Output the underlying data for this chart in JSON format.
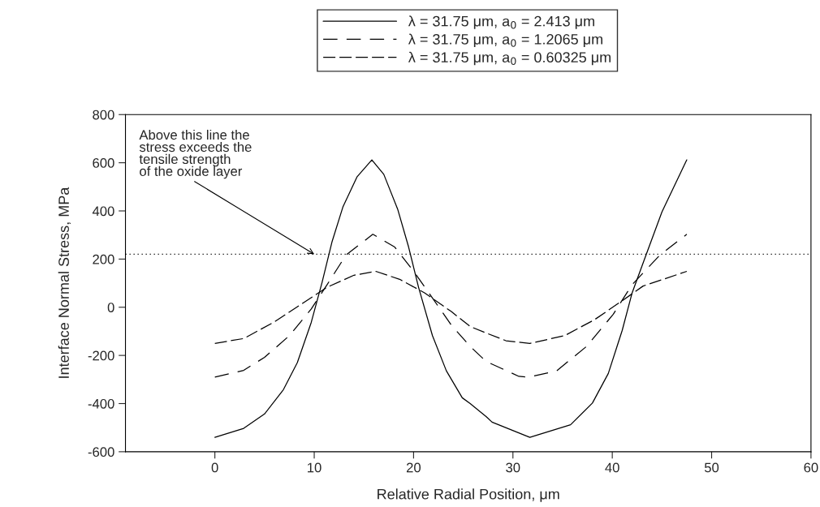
{
  "chart_data": {
    "type": "line",
    "xlabel": "Relative Radial Position, μm",
    "ylabel": "Interface Normal Stress, MPa",
    "xlim": [
      -9,
      60
    ],
    "xticks": [
      0,
      10,
      20,
      30,
      40,
      50,
      60
    ],
    "ylim": [
      -600,
      800
    ],
    "yticks": [
      -600,
      -400,
      -200,
      0,
      200,
      400,
      600,
      800
    ],
    "grid": false,
    "legend": "top",
    "marker": "none",
    "series": [
      {
        "name": "λ = 31.75 μm, a$_{0}$ = 2.413 μm",
        "color": "#000000",
        "line_style": "solid",
        "x": [
          0,
          2.9,
          5.0,
          6.9,
          8.3,
          9.7,
          10.8,
          11.8,
          12.9,
          14.3,
          15.8,
          17.0,
          18.4,
          19.5,
          20.5,
          21.9,
          23.3,
          24.9,
          25.7,
          27.3,
          27.9,
          31.7,
          35.8,
          38.0,
          39.6,
          41.0,
          42.0,
          43.4,
          45.0,
          47.5
        ],
        "values": [
          -540,
          -503,
          -443,
          -342,
          -230,
          -63,
          105,
          273,
          418,
          541,
          612,
          552,
          407,
          250,
          83,
          -118,
          -264,
          -376,
          -400,
          -454,
          -477,
          -540,
          -488,
          -398,
          -275,
          -96,
          60,
          217,
          396,
          612
        ]
      },
      {
        "name": "λ = 31.75 μm, a$_{0}$ = 1.2065 μm",
        "color": "#000000",
        "line_style": "dashed",
        "x": [
          0,
          2.9,
          5.0,
          7.5,
          9.7,
          11.3,
          13.2,
          15.9,
          18.1,
          20.0,
          21.9,
          23.8,
          25.7,
          27.3,
          30.6,
          31.6,
          34.4,
          37.4,
          40.1,
          42.0,
          44.8,
          47.5
        ],
        "values": [
          -290,
          -262,
          -208,
          -118,
          -7,
          94,
          217,
          303,
          250,
          150,
          38,
          -74,
          -163,
          -225,
          -287,
          -290,
          -264,
          -163,
          -29,
          94,
          217,
          303
        ]
      },
      {
        "name": "λ = 31.75 μm, a$_{0}$ = 0.60325 μm",
        "color": "#000000",
        "line_style": "dashed",
        "x": [
          0,
          2.9,
          5.9,
          8.6,
          11.3,
          14.0,
          16.2,
          18.6,
          21.1,
          23.8,
          25.7,
          27.3,
          29.3,
          31.7,
          35.2,
          38.2,
          41.0,
          43.1,
          47.5
        ],
        "values": [
          -150,
          -130,
          -63,
          10,
          83,
          133,
          149,
          116,
          60,
          -18,
          -80,
          -107,
          -139,
          -150,
          -118,
          -52,
          27,
          88,
          149
        ]
      }
    ],
    "ref_lines": [
      {
        "axis": "y",
        "value": 220,
        "color": "#000000",
        "line_style": "dotted"
      }
    ],
    "annotations": [
      {
        "text": "Above this line the\nstress exceeds the\ntensile strength\nof the oxide layer",
        "x": 10,
        "y": 220
      }
    ]
  }
}
